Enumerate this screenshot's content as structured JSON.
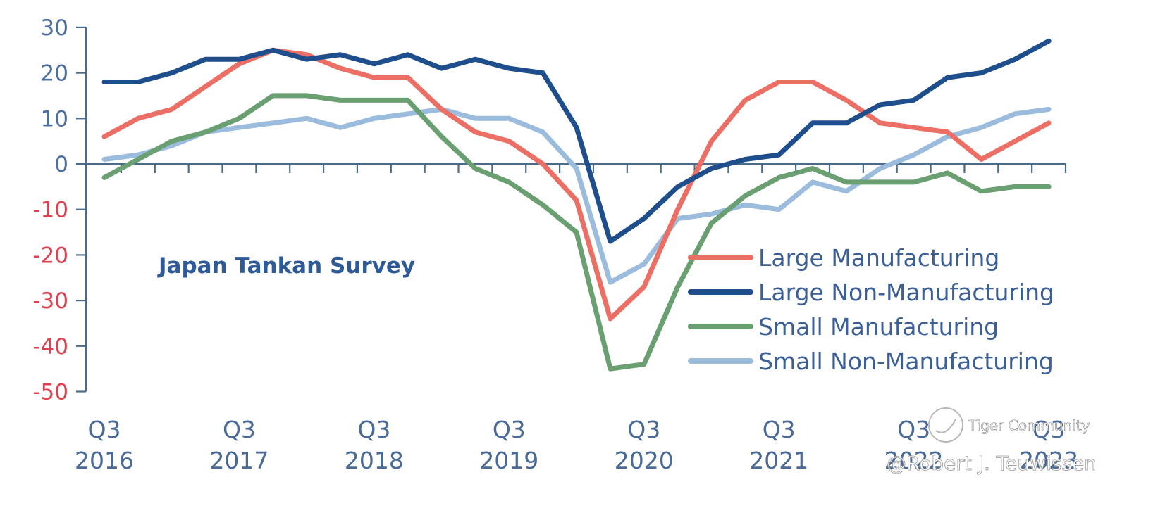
{
  "chart_data": {
    "type": "line",
    "title": "Japan Tankan Survey",
    "xlabel": "",
    "ylabel": "",
    "ylim": [
      -50,
      30
    ],
    "yticks": [
      30,
      20,
      10,
      0,
      -10,
      -20,
      -30,
      -40,
      -50
    ],
    "ytick_colors": {
      "positive": "#4d6f9f",
      "negative": "#e0414f"
    },
    "x": [
      "Q3 2016",
      "Q4 2016",
      "Q1 2017",
      "Q2 2017",
      "Q3 2017",
      "Q4 2017",
      "Q1 2018",
      "Q2 2018",
      "Q3 2018",
      "Q4 2018",
      "Q1 2019",
      "Q2 2019",
      "Q3 2019",
      "Q4 2019",
      "Q1 2020",
      "Q2 2020",
      "Q3 2020",
      "Q4 2020",
      "Q1 2021",
      "Q2 2021",
      "Q3 2021",
      "Q4 2021",
      "Q1 2022",
      "Q2 2022",
      "Q3 2022",
      "Q4 2022",
      "Q1 2023",
      "Q2 2023",
      "Q3 2023"
    ],
    "xtick_labels": [
      {
        "index": 0,
        "quarter": "Q3",
        "year": "2016"
      },
      {
        "index": 4,
        "quarter": "Q3",
        "year": "2017"
      },
      {
        "index": 8,
        "quarter": "Q3",
        "year": "2018"
      },
      {
        "index": 12,
        "quarter": "Q3",
        "year": "2019"
      },
      {
        "index": 16,
        "quarter": "Q3",
        "year": "2020"
      },
      {
        "index": 20,
        "quarter": "Q3",
        "year": "2021"
      },
      {
        "index": 24,
        "quarter": "Q3",
        "year": "2022"
      },
      {
        "index": 28,
        "quarter": "Q3",
        "year": "2023"
      }
    ],
    "grid": false,
    "legend_position": "bottom-right",
    "series": [
      {
        "name": "Large Manufacturing",
        "color": "#ec6f66",
        "values": [
          6,
          10,
          12,
          17,
          22,
          25,
          24,
          21,
          19,
          19,
          12,
          7,
          5,
          0,
          -8,
          -34,
          -27,
          -10,
          5,
          14,
          18,
          18,
          14,
          9,
          8,
          7,
          1,
          5,
          9
        ]
      },
      {
        "name": "Large Non-Manufacturing",
        "color": "#1f4e8c",
        "values": [
          18,
          18,
          20,
          23,
          23,
          25,
          23,
          24,
          22,
          24,
          21,
          23,
          21,
          20,
          8,
          -17,
          -12,
          -5,
          -1,
          1,
          2,
          9,
          9,
          13,
          14,
          19,
          20,
          23,
          27
        ]
      },
      {
        "name": "Small Manufacturing",
        "color": "#6a9f72",
        "values": [
          -3,
          1,
          5,
          7,
          10,
          15,
          15,
          14,
          14,
          14,
          6,
          -1,
          -4,
          -9,
          -15,
          -45,
          -44,
          -27,
          -13,
          -7,
          -3,
          -1,
          -4,
          -4,
          -4,
          -2,
          -6,
          -5,
          -5
        ]
      },
      {
        "name": "Small Non-Manufacturing",
        "color": "#9bbcdc",
        "values": [
          1,
          2,
          4,
          7,
          8,
          9,
          10,
          8,
          10,
          11,
          12,
          10,
          10,
          7,
          -1,
          -26,
          -22,
          -12,
          -11,
          -9,
          -10,
          -4,
          -6,
          -1,
          2,
          6,
          8,
          11,
          12
        ]
      }
    ]
  },
  "watermark": {
    "brand": "Tiger Community",
    "author": "@Robert J. Teuwissen"
  }
}
